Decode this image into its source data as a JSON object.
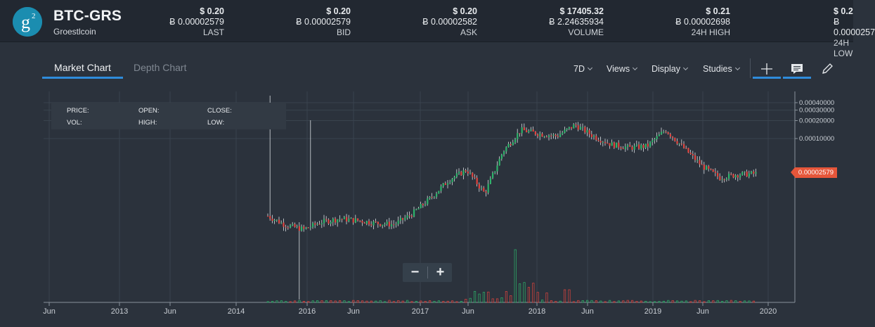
{
  "header": {
    "pair": "BTC-GRS",
    "coin_name": "Groestlcoin",
    "logo_letter": "g",
    "logo_sup": "2",
    "stats": [
      {
        "usd": "$ 0.20",
        "btc": "Ƀ 0.00002579",
        "label": "LAST"
      },
      {
        "usd": "$ 0.20",
        "btc": "Ƀ 0.00002579",
        "label": "BID"
      },
      {
        "usd": "$ 0.20",
        "btc": "Ƀ 0.00002582",
        "label": "ASK"
      },
      {
        "usd": "$ 17405.32",
        "btc": "Ƀ 2.24635934",
        "label": "VOLUME"
      },
      {
        "usd": "$ 0.21",
        "btc": "Ƀ 0.00002698",
        "label": "24H HIGH"
      },
      {
        "usd": "$ 0.2",
        "btc": "Ƀ 0.0000257",
        "label": "24H LOW"
      }
    ]
  },
  "tabs": {
    "market": "Market Chart",
    "depth": "Depth Chart"
  },
  "toolbar": {
    "interval": "7D",
    "views": "Views",
    "display": "Display",
    "studies": "Studies",
    "icons": [
      "crosshair-icon",
      "comment-icon",
      "pencil-icon"
    ]
  },
  "info": {
    "price": "PRICE:",
    "open": "OPEN:",
    "close": "CLOSE:",
    "vol": "VOL:",
    "high": "HIGH:",
    "low": "LOW:"
  },
  "zoom": {
    "out": "−",
    "in": "+"
  },
  "last_price_flag": "0.00002579",
  "colors": {
    "up": "#2db36a",
    "down": "#e0433d",
    "accent": "#2f8cdb",
    "flag": "#e6563a"
  },
  "chart_data": {
    "type": "candlestick",
    "x_tick_labels": [
      "Jun",
      "2013",
      "Jun",
      "2014",
      "2016",
      "Jun",
      "2017",
      "Jun",
      "2018",
      "Jun",
      "2019",
      "Jun",
      "2020"
    ],
    "y_tick_labels": [
      "0.00040000",
      "0.00030000",
      "0.00020000",
      "0.00010000"
    ],
    "y_scale": "log",
    "ohlc_approx_close": [
      5e-06,
      3.5e-06,
      3e-06,
      4e-06,
      4.5e-06,
      4.2e-06,
      3.8e-06,
      3.6e-06,
      5.5e-06,
      1e-05,
      2e-05,
      3e-05,
      1.2e-05,
      6e-05,
      0.00014,
      0.00012,
      0.00011,
      0.00017,
      0.00011,
      8e-05,
      7e-05,
      7.5e-05,
      0.00014,
      7e-05,
      3.5e-05,
      2.2e-05,
      2.5e-05,
      2.579e-05
    ],
    "last": "0.00002579"
  }
}
